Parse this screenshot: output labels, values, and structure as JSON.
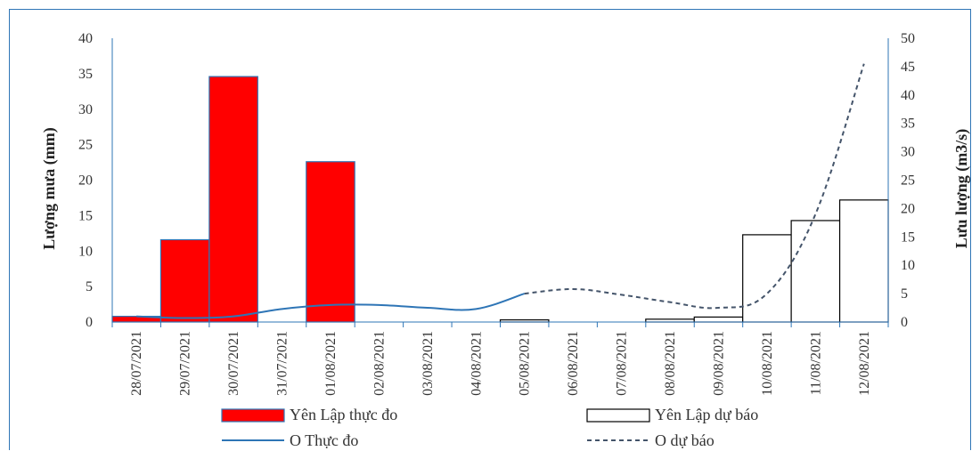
{
  "chart_data": {
    "type": "bar",
    "categories": [
      "28/07/2021",
      "29/07/2021",
      "30/07/2021",
      "31/07/2021",
      "01/08/2021",
      "02/08/2021",
      "03/08/2021",
      "04/08/2021",
      "05/08/2021",
      "06/08/2021",
      "07/08/2021",
      "08/08/2021",
      "09/08/2021",
      "10/08/2021",
      "11/08/2021",
      "12/08/2021"
    ],
    "ylabel": "Lượng mưa (mm)",
    "y2label": "Lưu lượng (m3/s)",
    "ylim": [
      0,
      40
    ],
    "y2lim": [
      0,
      50
    ],
    "yticks": [
      0,
      5,
      10,
      15,
      20,
      25,
      30,
      35,
      40
    ],
    "y2ticks": [
      0,
      5,
      10,
      15,
      20,
      25,
      30,
      35,
      40,
      45,
      50
    ],
    "series": [
      {
        "name": "Yên Lập thực đo",
        "kind": "bar",
        "axis": "left",
        "color": "#ff0000",
        "values": [
          0.8,
          11.6,
          34.6,
          0,
          22.6,
          0,
          0,
          0,
          0,
          0,
          0,
          0,
          0,
          0,
          0,
          0
        ]
      },
      {
        "name": "Yên Lập dự báo",
        "kind": "bar",
        "axis": "left",
        "color": "#ffffff",
        "values": [
          0,
          0,
          0,
          0,
          0,
          0,
          0,
          0,
          0.3,
          0,
          0,
          0.4,
          0.7,
          12.3,
          14.3,
          17.2
        ]
      },
      {
        "name": "O Thực đo",
        "kind": "line",
        "axis": "right",
        "color": "#2e75b6",
        "values": [
          1.0,
          0.7,
          1.0,
          2.3,
          3.0,
          3.0,
          2.5,
          2.3,
          5.0,
          null,
          null,
          null,
          null,
          null,
          null,
          null
        ]
      },
      {
        "name": "O dự báo",
        "kind": "dashed-line",
        "axis": "right",
        "color": "#44546a",
        "values": [
          null,
          null,
          null,
          null,
          null,
          null,
          null,
          null,
          5.0,
          5.8,
          4.8,
          3.5,
          2.5,
          5.0,
          19.0,
          45.5
        ]
      }
    ],
    "legend_position": "bottom",
    "grid": false
  }
}
